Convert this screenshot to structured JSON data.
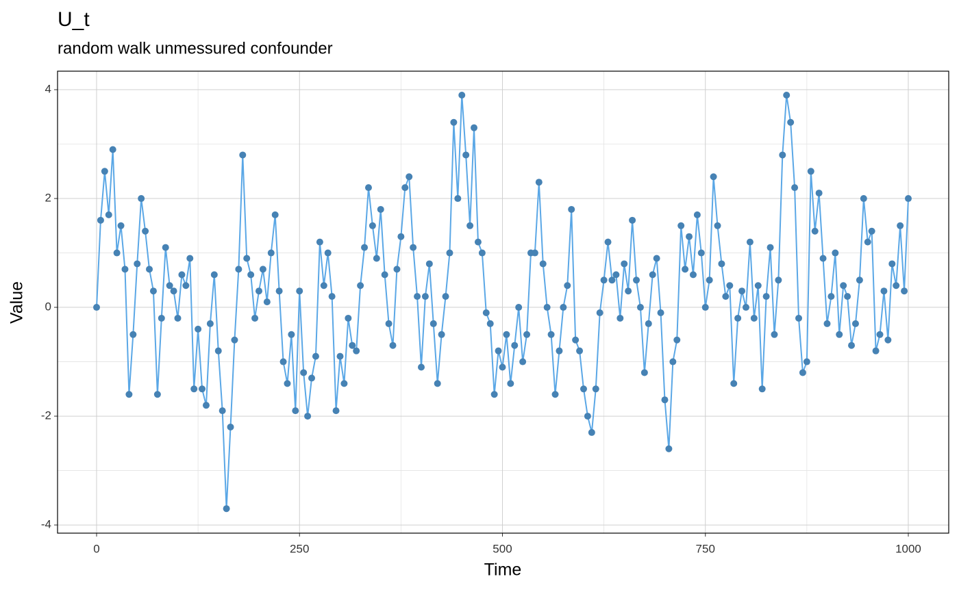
{
  "chart_data": {
    "type": "line",
    "title": "U_t",
    "subtitle": "random walk unmessured confounder",
    "x_label": "Time",
    "y_label": "Value",
    "xlim": [
      -48.1,
      1049.8
    ],
    "ylim": [
      -4.15,
      4.34
    ],
    "xticks": [
      0,
      250,
      500,
      750,
      1000
    ],
    "yticks": [
      -4,
      -2,
      0,
      2,
      4
    ],
    "minor_xticks": [
      125,
      375,
      625,
      875
    ],
    "minor_yticks": [
      -3,
      -1,
      1,
      3
    ],
    "grid": true,
    "line_color": "#5aa7e6",
    "point_color": "#4682b4",
    "x": [
      0,
      5,
      10,
      15,
      20,
      25,
      30,
      35,
      40,
      45,
      50,
      55,
      60,
      65,
      70,
      75,
      80,
      85,
      90,
      95,
      100,
      105,
      110,
      115,
      120,
      125,
      130,
      135,
      140,
      145,
      150,
      155,
      160,
      165,
      170,
      175,
      180,
      185,
      190,
      195,
      200,
      205,
      210,
      215,
      220,
      225,
      230,
      235,
      240,
      245,
      250,
      255,
      260,
      265,
      270,
      275,
      280,
      285,
      290,
      295,
      300,
      305,
      310,
      315,
      320,
      325,
      330,
      335,
      340,
      345,
      350,
      355,
      360,
      365,
      370,
      375,
      380,
      385,
      390,
      395,
      400,
      405,
      410,
      415,
      420,
      425,
      430,
      435,
      440,
      445,
      450,
      455,
      460,
      465,
      470,
      475,
      480,
      485,
      490,
      495,
      500,
      505,
      510,
      515,
      520,
      525,
      530,
      535,
      540,
      545,
      550,
      555,
      560,
      565,
      570,
      575,
      580,
      585,
      590,
      595,
      600,
      605,
      610,
      615,
      620,
      625,
      630,
      635,
      640,
      645,
      650,
      655,
      660,
      665,
      670,
      675,
      680,
      685,
      690,
      695,
      700,
      705,
      710,
      715,
      720,
      725,
      730,
      735,
      740,
      745,
      750,
      755,
      760,
      765,
      770,
      775,
      780,
      785,
      790,
      795,
      800,
      805,
      810,
      815,
      820,
      825,
      830,
      835,
      840,
      845,
      850,
      855,
      860,
      865,
      870,
      875,
      880,
      885,
      890,
      895,
      900,
      905,
      910,
      915,
      920,
      925,
      930,
      935,
      940,
      945,
      950,
      955,
      960,
      965,
      970,
      975,
      980,
      985,
      990,
      995,
      1000
    ],
    "values": [
      0,
      1.6,
      2.5,
      1.7,
      2.9,
      1.0,
      1.5,
      0.7,
      -1.6,
      -0.5,
      0.8,
      2.0,
      1.4,
      0.7,
      0.3,
      -1.6,
      -0.2,
      1.1,
      0.4,
      0.3,
      -0.2,
      0.6,
      0.4,
      0.9,
      -1.5,
      -0.4,
      -1.5,
      -1.8,
      -0.3,
      0.6,
      -0.8,
      -1.9,
      -3.7,
      -2.2,
      -0.6,
      0.7,
      2.8,
      0.9,
      0.6,
      -0.2,
      0.3,
      0.7,
      0.1,
      1.0,
      1.7,
      0.3,
      -1.0,
      -1.4,
      -0.5,
      -1.9,
      0.3,
      -1.2,
      -2.0,
      -1.3,
      -0.9,
      1.2,
      0.4,
      1.0,
      0.2,
      -1.9,
      -0.9,
      -1.4,
      -0.2,
      -0.7,
      -0.8,
      0.4,
      1.1,
      2.2,
      1.5,
      0.9,
      1.8,
      0.6,
      -0.3,
      -0.7,
      0.7,
      1.3,
      2.2,
      2.4,
      1.1,
      0.2,
      -1.1,
      0.2,
      0.8,
      -0.3,
      -1.4,
      -0.5,
      0.2,
      1.0,
      3.4,
      2.0,
      3.9,
      2.8,
      1.5,
      3.3,
      1.2,
      1.0,
      -0.1,
      -0.3,
      -1.6,
      -0.8,
      -1.1,
      -0.5,
      -1.4,
      -0.7,
      0.0,
      -1.0,
      -0.5,
      1.0,
      1.0,
      2.3,
      0.8,
      0.0,
      -0.5,
      -1.6,
      -0.8,
      0.0,
      0.4,
      1.8,
      -0.6,
      -0.8,
      -1.5,
      -2.0,
      -2.3,
      -1.5,
      -0.1,
      0.5,
      1.2,
      0.5,
      0.6,
      -0.2,
      0.8,
      0.3,
      1.6,
      0.5,
      0.0,
      -1.2,
      -0.3,
      0.6,
      0.9,
      -0.1,
      -1.7,
      -2.6,
      -1.0,
      -0.6,
      1.5,
      0.7,
      1.3,
      0.6,
      1.7,
      1.0,
      0.0,
      0.5,
      2.4,
      1.5,
      0.8,
      0.2,
      0.4,
      -1.4,
      -0.2,
      0.3,
      0.0,
      1.2,
      -0.2,
      0.4,
      -1.5,
      0.2,
      1.1,
      -0.5,
      0.5,
      2.8,
      3.9,
      3.4,
      2.2,
      -0.2,
      -1.2,
      -1.0,
      2.5,
      1.4,
      2.1,
      0.9,
      -0.3,
      0.2,
      1.0,
      -0.5,
      0.4,
      0.2,
      -0.7,
      -0.3,
      0.5,
      2.0,
      1.2,
      1.4,
      -0.8,
      -0.5,
      0.3,
      -0.6,
      0.8,
      0.4,
      1.5,
      0.3,
      2.0
    ]
  }
}
